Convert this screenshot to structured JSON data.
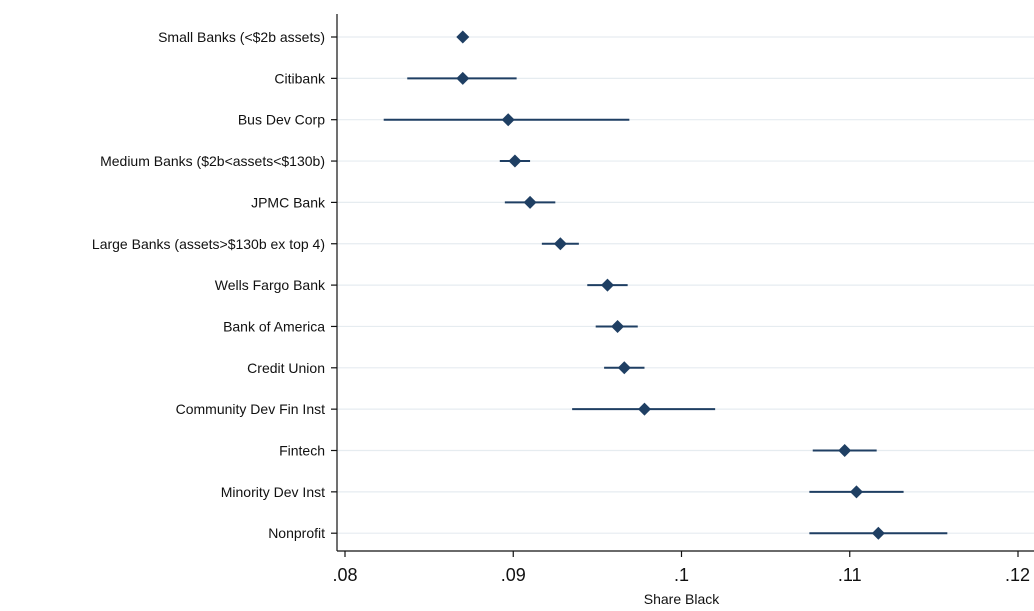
{
  "chart_data": {
    "type": "scatter",
    "subtype": "dot-and-whisker",
    "title": "",
    "xlabel": "Share Black",
    "ylabel": "",
    "xlim": [
      0.08,
      0.12
    ],
    "xticks": [
      0.08,
      0.09,
      0.1,
      0.11,
      0.12
    ],
    "xtick_labels": [
      ".08",
      ".09",
      ".1",
      ".11",
      ".12"
    ],
    "grid": true,
    "marker_color": "#1f3f63",
    "categories": [
      "Small Banks (<$2b assets)",
      "Citibank",
      "Bus Dev Corp",
      "Medium Banks ($2b<assets<$130b)",
      "JPMC Bank",
      "Large Banks (assets>$130b ex top 4)",
      "Wells Fargo Bank",
      "Bank of America",
      "Credit Union",
      "Community Dev Fin Inst",
      "Fintech",
      "Minority Dev Inst",
      "Nonprofit"
    ],
    "values": [
      0.087,
      0.087,
      0.0897,
      0.0901,
      0.091,
      0.0928,
      0.0956,
      0.0962,
      0.0966,
      0.0978,
      0.1097,
      0.1104,
      0.1117
    ],
    "ci_low": [
      0.0869,
      0.0837,
      0.0823,
      0.0892,
      0.0895,
      0.0917,
      0.0944,
      0.0949,
      0.0954,
      0.0935,
      0.1078,
      0.1076,
      0.1076
    ],
    "ci_high": [
      0.0871,
      0.0902,
      0.0969,
      0.091,
      0.0925,
      0.0939,
      0.0968,
      0.0974,
      0.0978,
      0.102,
      0.1116,
      0.1132,
      0.1158
    ]
  }
}
